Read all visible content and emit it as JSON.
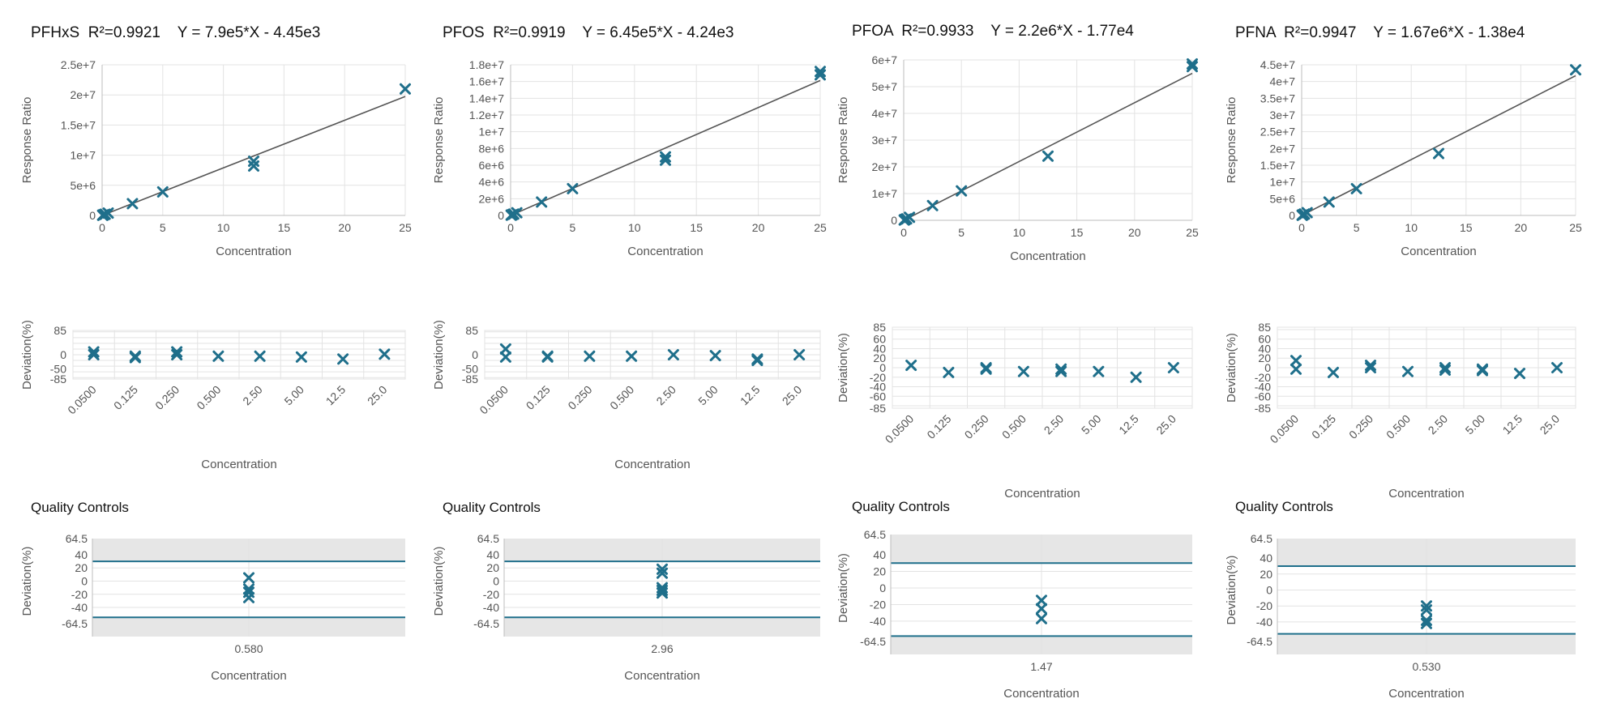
{
  "chart_data": [
    {
      "type": "scatter",
      "analyte": "PFHxS",
      "title": "PFHxS  R²=0.9921    Y = 7.9e5*X - 4.45e3",
      "curve": {
        "xlabel": "Concentration",
        "ylabel": "Response Ratio",
        "xlim": [
          0,
          25
        ],
        "ylim": [
          0,
          25000000
        ],
        "x_ticks": [
          "0",
          "5",
          "10",
          "15",
          "20",
          "25"
        ],
        "y_ticks": [
          "0",
          "5e+6",
          "1e+7",
          "1.5e+7",
          "2e+7",
          "2.5e+7"
        ],
        "fit": {
          "slope": 790000,
          "intercept": -4450
        },
        "points": [
          [
            0.05,
            30000
          ],
          [
            0.05,
            45000
          ],
          [
            0.125,
            100000
          ],
          [
            0.25,
            200000
          ],
          [
            0.5,
            390000
          ],
          [
            2.5,
            1950000
          ],
          [
            5,
            3900000
          ],
          [
            12.5,
            8200000
          ],
          [
            12.5,
            9000000
          ],
          [
            25,
            21000000
          ]
        ]
      },
      "deviation": {
        "xlabel": "Concentration",
        "ylabel": "Deviation(%)",
        "categories": [
          "0.0500",
          "0.125",
          "0.250",
          "0.500",
          "2.50",
          "5.00",
          "12.5",
          "25.0"
        ],
        "y_ticks": [
          "85",
          "0",
          "-50",
          "-85"
        ],
        "ylim": [
          -85,
          85
        ],
        "points": [
          [
            0,
            10
          ],
          [
            0,
            0
          ],
          [
            1,
            -10
          ],
          [
            1,
            -5
          ],
          [
            2,
            10
          ],
          [
            2,
            0
          ],
          [
            3,
            -5
          ],
          [
            4,
            -5
          ],
          [
            5,
            -8
          ],
          [
            6,
            -15
          ],
          [
            7,
            2
          ]
        ]
      },
      "qc": {
        "title": "Quality Controls",
        "xlabel": "Concentration",
        "ylabel": "Deviation(%)",
        "category": "0.580",
        "y_ticks": [
          "64.5",
          "40",
          "20",
          "0",
          "-20",
          "-40",
          "-64.5"
        ],
        "ylim": [
          -64.5,
          64.5
        ],
        "limits": [
          30,
          -55
        ],
        "points": [
          5,
          -12,
          -17,
          -25
        ]
      }
    },
    {
      "type": "scatter",
      "analyte": "PFOS",
      "title": "PFOS  R²=0.9919    Y = 6.45e5*X - 4.24e3",
      "curve": {
        "xlabel": "Concentration",
        "ylabel": "Response Ratio",
        "xlim": [
          0,
          25
        ],
        "ylim": [
          0,
          18000000
        ],
        "x_ticks": [
          "0",
          "5",
          "10",
          "15",
          "20",
          "25"
        ],
        "y_ticks": [
          "0",
          "2e+6",
          "4e+6",
          "6e+6",
          "8e+6",
          "1e+7",
          "1.2e+7",
          "1.4e+7",
          "1.6e+7",
          "1.8e+7"
        ],
        "fit": {
          "slope": 645000,
          "intercept": -4240
        },
        "points": [
          [
            0.05,
            30000
          ],
          [
            0.05,
            40000
          ],
          [
            0.125,
            80000
          ],
          [
            0.25,
            160000
          ],
          [
            0.5,
            320000
          ],
          [
            2.5,
            1600000
          ],
          [
            5,
            3200000
          ],
          [
            12.5,
            6600000
          ],
          [
            12.5,
            7000000
          ],
          [
            25,
            16800000
          ],
          [
            25,
            17200000
          ]
        ]
      },
      "deviation": {
        "xlabel": "Concentration",
        "ylabel": "Deviation(%)",
        "categories": [
          "0.0500",
          "0.125",
          "0.250",
          "0.500",
          "2.50",
          "5.00",
          "12.5",
          "25.0"
        ],
        "y_ticks": [
          "85",
          "0",
          "-50",
          "-85"
        ],
        "ylim": [
          -85,
          85
        ],
        "points": [
          [
            0,
            20
          ],
          [
            0,
            -8
          ],
          [
            1,
            -8
          ],
          [
            1,
            -5
          ],
          [
            2,
            -5
          ],
          [
            3,
            -5
          ],
          [
            4,
            0
          ],
          [
            5,
            -3
          ],
          [
            6,
            -15
          ],
          [
            6,
            -20
          ],
          [
            7,
            0
          ]
        ]
      },
      "qc": {
        "title": "Quality Controls",
        "xlabel": "Concentration",
        "ylabel": "Deviation(%)",
        "category": "2.96",
        "y_ticks": [
          "64.5",
          "40",
          "20",
          "0",
          "-20",
          "-40",
          "-64.5"
        ],
        "ylim": [
          -64.5,
          64.5
        ],
        "limits": [
          30,
          -55
        ],
        "points": [
          18,
          12,
          -10,
          -14,
          -18
        ]
      }
    },
    {
      "type": "scatter",
      "analyte": "PFOA",
      "title": "PFOA  R²=0.9933    Y = 2.2e6*X - 1.77e4",
      "curve": {
        "xlabel": "Concentration",
        "ylabel": "Response Ratio",
        "xlim": [
          0,
          25
        ],
        "ylim": [
          0,
          60000000
        ],
        "x_ticks": [
          "0",
          "5",
          "10",
          "15",
          "20",
          "25"
        ],
        "y_ticks": [
          "0",
          "1e+7",
          "2e+7",
          "3e+7",
          "4e+7",
          "5e+7",
          "6e+7"
        ],
        "fit": {
          "slope": 2200000,
          "intercept": -17700
        },
        "points": [
          [
            0.05,
            100000
          ],
          [
            0.05,
            150000
          ],
          [
            0.125,
            300000
          ],
          [
            0.25,
            550000
          ],
          [
            0.5,
            1100000
          ],
          [
            2.5,
            5500000
          ],
          [
            5,
            11000000
          ],
          [
            12.5,
            24000000
          ],
          [
            25,
            57500000
          ],
          [
            25,
            58500000
          ]
        ]
      },
      "deviation": {
        "xlabel": "Concentration",
        "ylabel": "Deviation(%)",
        "categories": [
          "0.0500",
          "0.125",
          "0.250",
          "0.500",
          "2.50",
          "5.00",
          "12.5",
          "25.0"
        ],
        "y_ticks": [
          "85",
          "60",
          "40",
          "20",
          "0",
          "-20",
          "-40",
          "-60",
          "-85"
        ],
        "ylim": [
          -85,
          85
        ],
        "points": [
          [
            0,
            5
          ],
          [
            1,
            -10
          ],
          [
            2,
            0
          ],
          [
            2,
            -3
          ],
          [
            3,
            -8
          ],
          [
            4,
            -3
          ],
          [
            4,
            -8
          ],
          [
            5,
            -8
          ],
          [
            6,
            -20
          ],
          [
            7,
            0
          ]
        ]
      },
      "qc": {
        "title": "Quality Controls",
        "xlabel": "Concentration",
        "ylabel": "Deviation(%)",
        "category": "1.47",
        "y_ticks": [
          "64.5",
          "40",
          "20",
          "0",
          "-20",
          "-40",
          "-64.5"
        ],
        "ylim": [
          -64.5,
          64.5
        ],
        "limits": [
          30,
          -58
        ],
        "points": [
          -15,
          -25,
          -37
        ]
      }
    },
    {
      "type": "scatter",
      "analyte": "PFNA",
      "title": "PFNA  R²=0.9947    Y = 1.67e6*X - 1.38e4",
      "curve": {
        "xlabel": "Concentration",
        "ylabel": "Response Ratio",
        "xlim": [
          0,
          25
        ],
        "ylim": [
          0,
          45000000
        ],
        "x_ticks": [
          "0",
          "5",
          "10",
          "15",
          "20",
          "25"
        ],
        "y_ticks": [
          "0",
          "5e+6",
          "1e+7",
          "1.5e+7",
          "2e+7",
          "2.5e+7",
          "3e+7",
          "3.5e+7",
          "4e+7",
          "4.5e+7"
        ],
        "fit": {
          "slope": 1670000,
          "intercept": -13800
        },
        "points": [
          [
            0.05,
            60000
          ],
          [
            0.05,
            90000
          ],
          [
            0.125,
            200000
          ],
          [
            0.25,
            420000
          ],
          [
            0.5,
            830000
          ],
          [
            2.5,
            4000000
          ],
          [
            5,
            8000000
          ],
          [
            12.5,
            18500000
          ],
          [
            25,
            43500000
          ]
        ]
      },
      "deviation": {
        "xlabel": "Concentration",
        "ylabel": "Deviation(%)",
        "categories": [
          "0.0500",
          "0.125",
          "0.250",
          "0.500",
          "2.50",
          "5.00",
          "12.5",
          "25.0"
        ],
        "y_ticks": [
          "85",
          "60",
          "40",
          "20",
          "0",
          "-20",
          "-40",
          "-60",
          "-85"
        ],
        "ylim": [
          -85,
          85
        ],
        "points": [
          [
            0,
            15
          ],
          [
            0,
            -3
          ],
          [
            1,
            -10
          ],
          [
            2,
            5
          ],
          [
            2,
            0
          ],
          [
            3,
            -8
          ],
          [
            4,
            0
          ],
          [
            4,
            -5
          ],
          [
            5,
            -3
          ],
          [
            5,
            -6
          ],
          [
            6,
            -12
          ],
          [
            7,
            0
          ]
        ]
      },
      "qc": {
        "title": "Quality Controls",
        "xlabel": "Concentration",
        "ylabel": "Deviation(%)",
        "category": "0.530",
        "y_ticks": [
          "64.5",
          "40",
          "20",
          "0",
          "-20",
          "-40",
          "-64.5"
        ],
        "ylim": [
          -64.5,
          64.5
        ],
        "limits": [
          30,
          -55
        ],
        "points": [
          -20,
          -25,
          -38,
          -42
        ]
      }
    }
  ]
}
